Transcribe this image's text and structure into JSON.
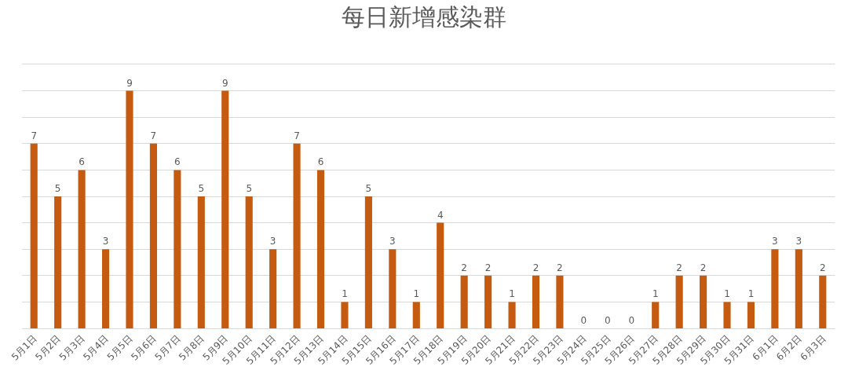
{
  "chart_data": {
    "type": "bar",
    "title": "每日新增感染群",
    "categories": [
      "5月1日",
      "5月2日",
      "5月3日",
      "5月4日",
      "5月5日",
      "5月6日",
      "5月7日",
      "5月8日",
      "5月9日",
      "5月10日",
      "5月11日",
      "5月12日",
      "5月13日",
      "5月14日",
      "5月15日",
      "5月16日",
      "5月17日",
      "5月18日",
      "5月19日",
      "5月20日",
      "5月21日",
      "5月22日",
      "5月23日",
      "5月24日",
      "5月25日",
      "5月26日",
      "5月27日",
      "5月28日",
      "5月29日",
      "5月30日",
      "5月31日",
      "6月1日",
      "6月2日",
      "6月3日"
    ],
    "values": [
      7,
      5,
      6,
      3,
      9,
      7,
      6,
      5,
      9,
      5,
      3,
      7,
      6,
      1,
      5,
      3,
      1,
      4,
      2,
      2,
      1,
      2,
      2,
      0,
      0,
      0,
      1,
      2,
      2,
      1,
      1,
      3,
      3,
      2
    ],
    "color": "#c55a11",
    "ylim": [
      0,
      10
    ],
    "yticks": [
      {
        "value": 0,
        "label": null
      },
      {
        "value": 1,
        "label": null
      },
      {
        "value": 2,
        "label": null
      },
      {
        "value": 3,
        "label": null
      },
      {
        "value": 4,
        "label": null
      },
      {
        "value": 5,
        "label": null
      },
      {
        "value": 6,
        "label": null
      },
      {
        "value": 7,
        "label": null
      },
      {
        "value": 8,
        "label": null
      },
      {
        "value": 9,
        "label": null
      },
      {
        "value": 10,
        "label": null
      }
    ],
    "grid": "y",
    "data_labels": true
  }
}
